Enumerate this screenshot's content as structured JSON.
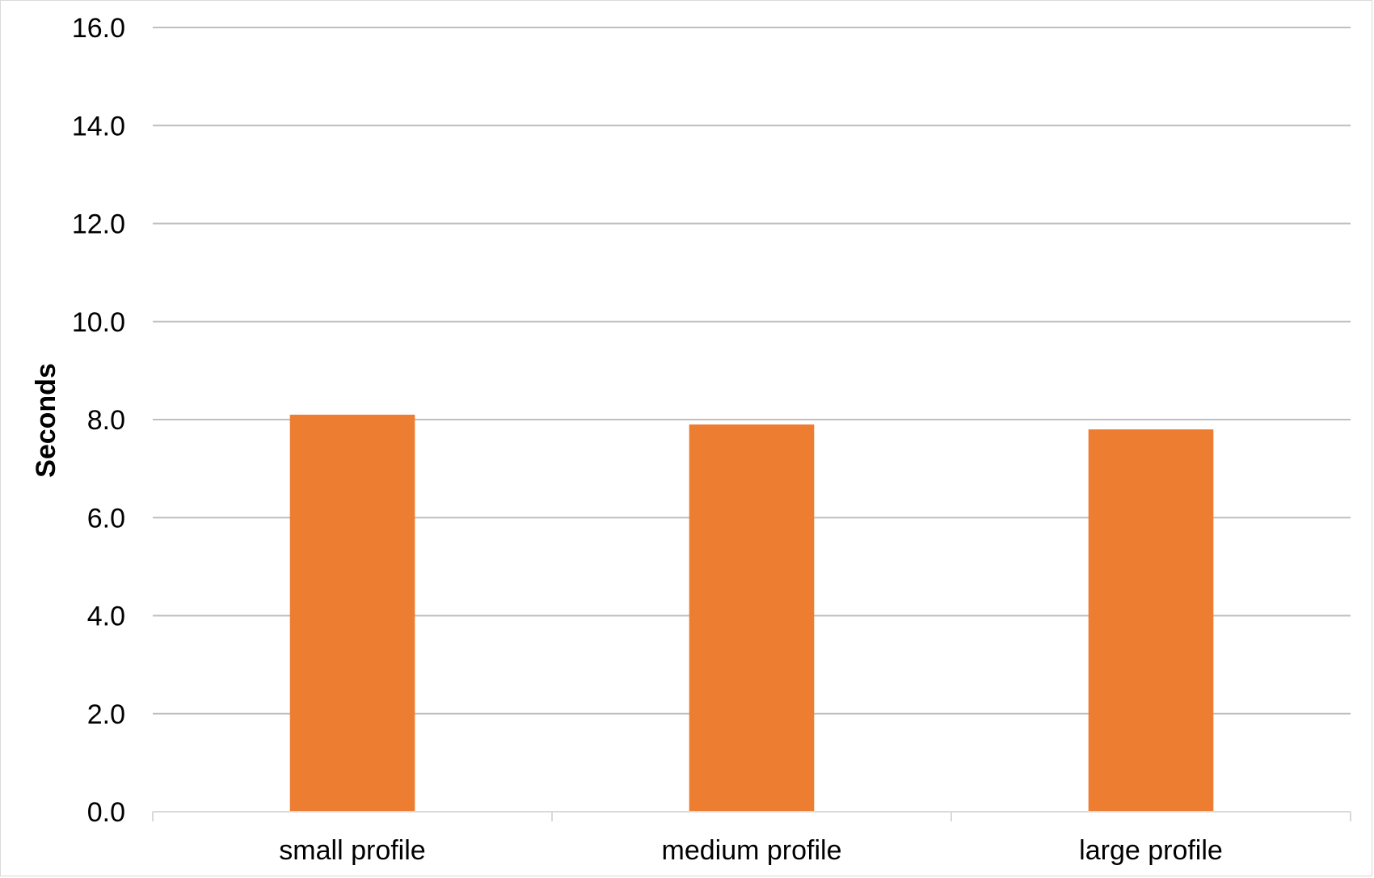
{
  "chart_data": {
    "type": "bar",
    "title": "",
    "xlabel": "",
    "ylabel": "Seconds",
    "categories": [
      "small profile",
      "medium profile",
      "large profile"
    ],
    "values": [
      8.1,
      7.9,
      7.8
    ],
    "ylim": [
      0,
      16
    ],
    "yticks": [
      "0.0",
      "2.0",
      "4.0",
      "6.0",
      "8.0",
      "10.0",
      "12.0",
      "14.0",
      "16.0"
    ],
    "grid": true,
    "legend": "none",
    "colors": {
      "bar": "#ED7D31",
      "grid": "#BFBFBF",
      "axis": "#D9D9D9",
      "text": "#000000"
    }
  }
}
